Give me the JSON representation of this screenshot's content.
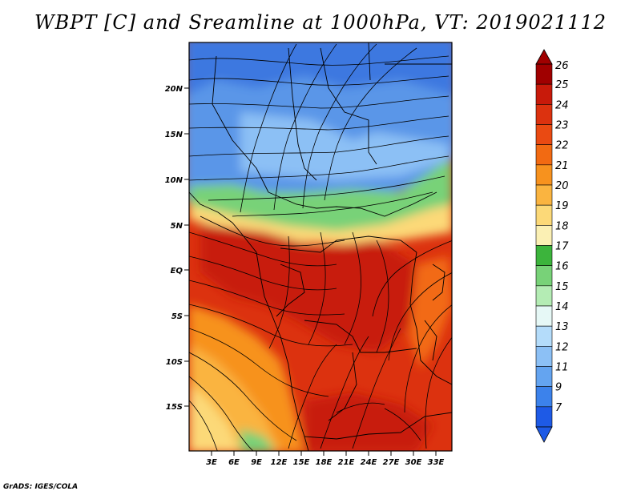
{
  "title": "WBPT [C] and Sreamline at 1000hPa, VT: 2019021112",
  "footer": "GrADS: IGES/COLA",
  "map": {
    "lat_labels": [
      "20N",
      "15N",
      "10N",
      "5N",
      "EQ",
      "5S",
      "10S",
      "15S"
    ],
    "lon_labels": [
      "3E",
      "6E",
      "9E",
      "12E",
      "15E",
      "18E",
      "21E",
      "24E",
      "27E",
      "30E",
      "33E"
    ]
  },
  "colorbar": {
    "labels": [
      "26",
      "25",
      "24",
      "23",
      "22",
      "21",
      "20",
      "19",
      "18",
      "17",
      "16",
      "15",
      "14",
      "13",
      "12",
      "11",
      "9",
      "7"
    ],
    "colors": [
      "#a00000",
      "#c81a0a",
      "#dc320f",
      "#ea4a12",
      "#f26a12",
      "#f7921e",
      "#fab440",
      "#fcd978",
      "#fbf0b4",
      "#3cb43c",
      "#78d278",
      "#b4ecb4",
      "#e6f8f6",
      "#b4dcfa",
      "#8cc0f5",
      "#64a4f0",
      "#3c82eb",
      "#1e5ae6"
    ]
  }
}
